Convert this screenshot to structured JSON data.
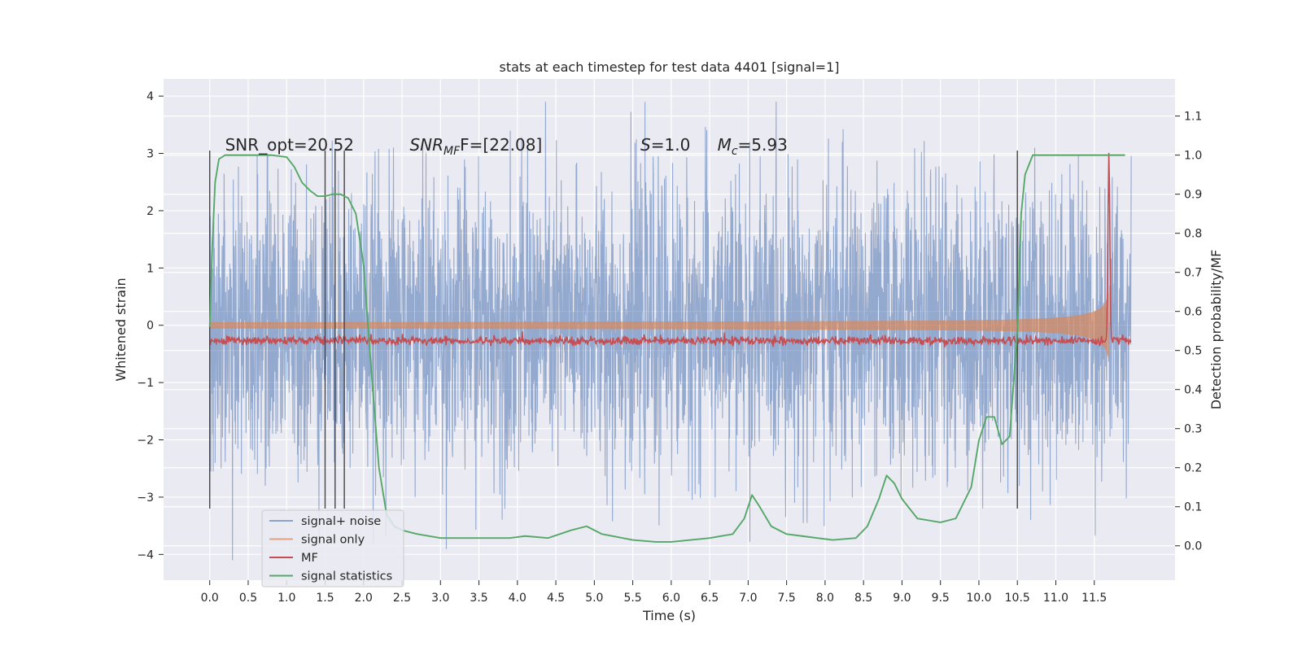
{
  "chart_data": {
    "type": "line",
    "title": "stats at each timestep for test data 4401 [signal=1]",
    "xlabel": "Time (s)",
    "ylabel": "Whitened strain",
    "y2label": "Detection probability/MF",
    "xlim": [
      -0.6,
      12.55
    ],
    "ylim": [
      -4.45,
      4.3
    ],
    "y2lim": [
      -0.088,
      1.195
    ],
    "x_ticks": [
      "0.0",
      "0.5",
      "1.0",
      "1.5",
      "2.0",
      "2.5",
      "3.0",
      "3.5",
      "4.0",
      "4.5",
      "5.0",
      "5.5",
      "6.0",
      "6.5",
      "7.0",
      "7.5",
      "8.0",
      "8.5",
      "9.0",
      "9.5",
      "10.0",
      "10.5",
      "11.0",
      "11.5"
    ],
    "y_ticks": [
      "4",
      "3",
      "2",
      "1",
      "0",
      "−1",
      "−2",
      "−3",
      "−4"
    ],
    "y2_ticks": [
      "1.1",
      "1.0",
      "0.9",
      "0.8",
      "0.7",
      "0.6",
      "0.5",
      "0.4",
      "0.3",
      "0.2",
      "0.1",
      "0.0"
    ],
    "grid": true,
    "legend_position": "lower-left",
    "annotations": [
      {
        "id": "snr-opt",
        "text": "SNR_opt=20.52",
        "x": 0.2,
        "y": 3.05
      },
      {
        "id": "snr-mf",
        "text": "SNR",
        "sub": "MF",
        "tail": "F=[22.08]",
        "x": 2.6,
        "y": 3.05
      },
      {
        "id": "s-val",
        "text": "S",
        "tail": "=1.0",
        "x": 5.6,
        "y": 3.05
      },
      {
        "id": "mc-val",
        "text": "M",
        "sub": "c",
        "tail": "=5.93",
        "x": 6.6,
        "y": 3.05
      }
    ],
    "vlines": [
      0.0,
      1.5,
      1.63,
      1.75,
      10.5
    ],
    "vline_range": [
      -3.2,
      3.05
    ],
    "series": [
      {
        "name": "signal+ noise",
        "color": "#4c72b0",
        "kind": "noise",
        "x_range": [
          0.0,
          11.98
        ],
        "amplitude": 1.25
      },
      {
        "name": "signal only",
        "color": "#dd8452",
        "kind": "chirp",
        "x_range": [
          0.0,
          11.98
        ],
        "merger_time": 11.69
      },
      {
        "name": "MF",
        "color": "#c44e52",
        "kind": "mf",
        "x_range": [
          0.0,
          11.98
        ],
        "peak_time": 11.69,
        "peak_value": 1.0
      },
      {
        "name": "signal statistics",
        "color": "#55a868",
        "kind": "probability",
        "axis": "right",
        "x": [
          0.0,
          0.03,
          0.07,
          0.12,
          0.2,
          0.4,
          0.8,
          1.0,
          1.1,
          1.2,
          1.3,
          1.4,
          1.5,
          1.6,
          1.7,
          1.8,
          1.9,
          2.0,
          2.1,
          2.2,
          2.3,
          2.4,
          2.5,
          2.7,
          3.0,
          3.5,
          3.9,
          4.1,
          4.4,
          4.7,
          4.9,
          5.1,
          5.5,
          5.8,
          6.0,
          6.5,
          6.8,
          6.95,
          7.05,
          7.15,
          7.3,
          7.5,
          7.7,
          7.9,
          8.1,
          8.4,
          8.55,
          8.7,
          8.8,
          8.9,
          9.0,
          9.2,
          9.5,
          9.7,
          9.9,
          10.0,
          10.1,
          10.2,
          10.3,
          10.4,
          10.5,
          10.55,
          10.6,
          10.7,
          11.0,
          11.5,
          11.9
        ],
        "y": [
          0.56,
          0.75,
          0.93,
          0.99,
          1.0,
          1.0,
          1.0,
          0.995,
          0.97,
          0.93,
          0.91,
          0.895,
          0.895,
          0.9,
          0.9,
          0.89,
          0.85,
          0.72,
          0.45,
          0.2,
          0.08,
          0.05,
          0.04,
          0.03,
          0.02,
          0.02,
          0.02,
          0.025,
          0.02,
          0.04,
          0.05,
          0.03,
          0.015,
          0.01,
          0.01,
          0.02,
          0.03,
          0.07,
          0.13,
          0.1,
          0.05,
          0.03,
          0.025,
          0.02,
          0.015,
          0.02,
          0.05,
          0.12,
          0.18,
          0.16,
          0.12,
          0.07,
          0.06,
          0.07,
          0.15,
          0.27,
          0.33,
          0.33,
          0.26,
          0.28,
          0.55,
          0.85,
          0.95,
          1.0,
          1.0,
          1.0,
          1.0
        ]
      }
    ]
  }
}
